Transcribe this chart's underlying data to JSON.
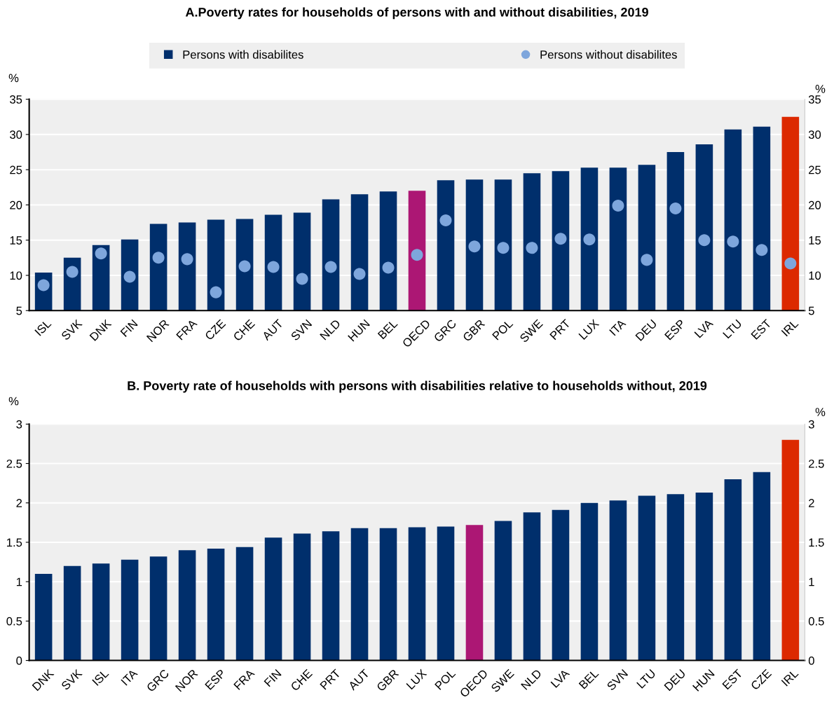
{
  "chart_data": [
    {
      "type": "bar",
      "title": "A.Poverty rates for households of persons with and without disabilities, 2019",
      "ylabel": "%",
      "y2label": "%",
      "categories": [
        "ISL",
        "SVK",
        "DNK",
        "FIN",
        "NOR",
        "FRA",
        "CZE",
        "CHE",
        "AUT",
        "SVN",
        "NLD",
        "HUN",
        "BEL",
        "OECD",
        "GRC",
        "GBR",
        "POL",
        "SWE",
        "PRT",
        "LUX",
        "ITA",
        "DEU",
        "ESP",
        "LVA",
        "LTU",
        "EST",
        "IRL"
      ],
      "series": [
        {
          "name": "Persons with disabilites",
          "color": "#002f6c",
          "colors": [
            "#002f6c",
            "#002f6c",
            "#002f6c",
            "#002f6c",
            "#002f6c",
            "#002f6c",
            "#002f6c",
            "#002f6c",
            "#002f6c",
            "#002f6c",
            "#002f6c",
            "#002f6c",
            "#002f6c",
            "#ac1774",
            "#002f6c",
            "#002f6c",
            "#002f6c",
            "#002f6c",
            "#002f6c",
            "#002f6c",
            "#002f6c",
            "#002f6c",
            "#002f6c",
            "#002f6c",
            "#002f6c",
            "#002f6c",
            "#dc2900"
          ],
          "values": [
            10.4,
            12.5,
            14.3,
            15.1,
            17.3,
            17.5,
            17.9,
            18.0,
            18.6,
            18.9,
            20.8,
            21.5,
            21.9,
            22.0,
            23.5,
            23.6,
            23.6,
            24.5,
            24.8,
            25.3,
            25.3,
            25.7,
            27.5,
            28.6,
            30.7,
            31.1,
            32.5
          ]
        },
        {
          "name": "Persons without disabilites",
          "type": "scatter",
          "marker": "circle",
          "color": "#7ea6dc",
          "values": [
            8.6,
            10.5,
            13.1,
            9.8,
            12.5,
            12.3,
            7.6,
            11.3,
            11.2,
            9.5,
            11.2,
            10.2,
            11.1,
            12.9,
            17.8,
            14.1,
            13.9,
            13.9,
            15.2,
            15.1,
            19.9,
            12.2,
            19.5,
            15.0,
            14.8,
            13.6,
            11.7
          ]
        }
      ],
      "ylim": [
        5,
        35
      ],
      "yticks": [
        5,
        10,
        15,
        20,
        25,
        30,
        35
      ],
      "y2lim": [
        5,
        35
      ],
      "y2ticks": [
        5,
        10,
        15,
        20,
        25,
        30,
        35
      ],
      "grid": true,
      "legend": "top"
    },
    {
      "type": "bar",
      "title": "B. Poverty rate of households with persons with disabilities relative to households without, 2019",
      "ylabel": "%",
      "y2label": "%",
      "categories": [
        "DNK",
        "SVK",
        "ISL",
        "ITA",
        "GRC",
        "NOR",
        "ESP",
        "FRA",
        "FIN",
        "CHE",
        "PRT",
        "AUT",
        "GBR",
        "LUX",
        "POL",
        "OECD",
        "SWE",
        "NLD",
        "LVA",
        "BEL",
        "SVN",
        "LTU",
        "DEU",
        "HUN",
        "EST",
        "CZE",
        "IRL"
      ],
      "series": [
        {
          "color": "#002f6c",
          "colors": [
            "#002f6c",
            "#002f6c",
            "#002f6c",
            "#002f6c",
            "#002f6c",
            "#002f6c",
            "#002f6c",
            "#002f6c",
            "#002f6c",
            "#002f6c",
            "#002f6c",
            "#002f6c",
            "#002f6c",
            "#002f6c",
            "#002f6c",
            "#ac1774",
            "#002f6c",
            "#002f6c",
            "#002f6c",
            "#002f6c",
            "#002f6c",
            "#002f6c",
            "#002f6c",
            "#002f6c",
            "#002f6c",
            "#002f6c",
            "#dc2900"
          ],
          "values": [
            1.1,
            1.2,
            1.23,
            1.28,
            1.32,
            1.4,
            1.42,
            1.44,
            1.56,
            1.61,
            1.64,
            1.68,
            1.68,
            1.69,
            1.7,
            1.72,
            1.77,
            1.88,
            1.91,
            2.0,
            2.03,
            2.09,
            2.11,
            2.13,
            2.3,
            2.39,
            2.8
          ]
        }
      ],
      "ylim": [
        0,
        3
      ],
      "yticks": [
        0,
        0.5,
        1,
        1.5,
        2,
        2.5,
        3
      ],
      "y2lim": [
        0,
        3
      ],
      "y2ticks": [
        0,
        0.5,
        1,
        1.5,
        2,
        2.5,
        3
      ],
      "grid": true
    }
  ]
}
